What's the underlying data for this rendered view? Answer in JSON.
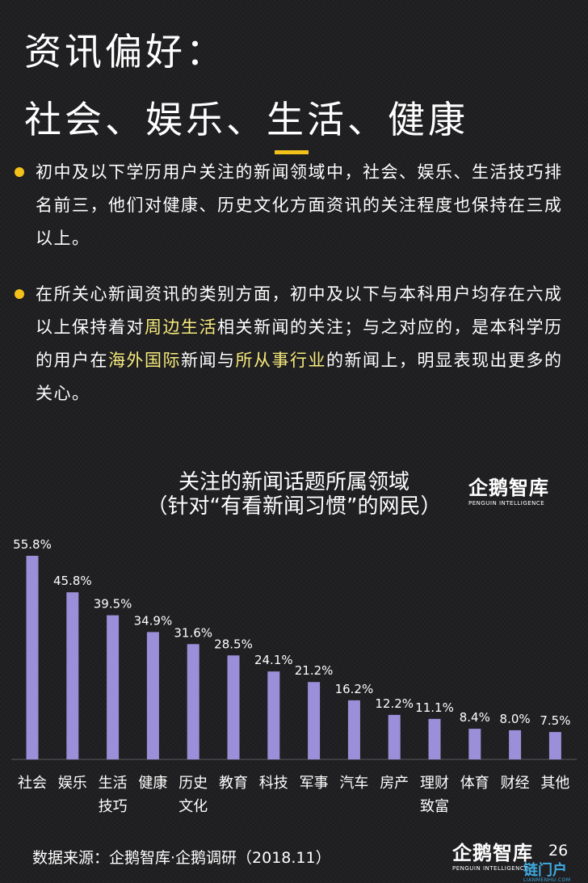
{
  "title": {
    "line1": "资讯偏好：",
    "line2": "社会、娱乐、生活、健康"
  },
  "bullets": [
    {
      "text": "初中及以下学历用户关注的新闻领域中，社会、娱乐、生活技巧排名前三，他们对健康、历史文化方面资讯的关注程度也保持在三成以上。"
    },
    {
      "parts": [
        "在所关心新闻资讯的类别方面，初中及以下与本科用户均存在六成以上保持着对",
        "周边生活",
        "相关新闻的关注；与之对应的，是本科学历的用户在",
        "海外国际",
        "新闻与",
        "所从事行业",
        "的新闻上，明显表现出更多的关心。"
      ]
    }
  ],
  "chart_data": {
    "type": "bar",
    "title": "关注的新闻话题所属领域",
    "subtitle": "（针对“有看新闻习惯”的网民）",
    "categories": [
      "社会",
      "娱乐",
      "生活技巧",
      "健康",
      "历史文化",
      "教育",
      "科技",
      "军事",
      "汽车",
      "房产",
      "理财致富",
      "体育",
      "财经",
      "其他"
    ],
    "category_lines": [
      [
        "社会"
      ],
      [
        "娱乐"
      ],
      [
        "生活",
        "技巧"
      ],
      [
        "健康"
      ],
      [
        "历史",
        "文化"
      ],
      [
        "教育"
      ],
      [
        "科技"
      ],
      [
        "军事"
      ],
      [
        "汽车"
      ],
      [
        "房产"
      ],
      [
        "理财",
        "致富"
      ],
      [
        "体育"
      ],
      [
        "财经"
      ],
      [
        "其他"
      ]
    ],
    "values": [
      55.8,
      45.8,
      39.5,
      34.9,
      31.6,
      28.5,
      24.1,
      21.2,
      16.2,
      12.2,
      11.1,
      8.4,
      8.0,
      7.5
    ],
    "value_labels": [
      "55.8%",
      "45.8%",
      "39.5%",
      "34.9%",
      "31.6%",
      "28.5%",
      "24.1%",
      "21.2%",
      "16.2%",
      "12.2%",
      "11.1%",
      "8.4%",
      "8.0%",
      "7.5%"
    ],
    "ylim": [
      0,
      60
    ],
    "grid": false,
    "bar_color": "#9a8fd8"
  },
  "logo": {
    "name": "企鹅智库",
    "sub": "PENGUIN INTELLIGENCE"
  },
  "footer": {
    "source": "数据来源：企鹅智库·企鹅调研（2018.11）",
    "page": "26"
  },
  "watermark": {
    "text": "链门户",
    "sub": "LIANMENHU.COM"
  },
  "colors": {
    "background": "#1e1d1f",
    "accent": "#f2c21b",
    "highlight": "#f7ec7d",
    "bar": "#9a8fd8"
  }
}
